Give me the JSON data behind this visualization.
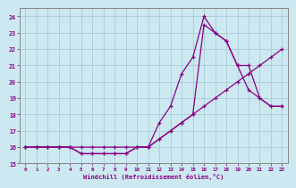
{
  "xlabel": "Windchill (Refroidissement éolien,°C)",
  "background_color": "#cce8f0",
  "grid_color": "#aaccd8",
  "line_color": "#880088",
  "xlim": [
    -0.5,
    23.5
  ],
  "ylim": [
    15,
    24.5
  ],
  "yticks": [
    15,
    16,
    17,
    18,
    19,
    20,
    21,
    22,
    23,
    24
  ],
  "xticks": [
    0,
    1,
    2,
    3,
    4,
    5,
    6,
    7,
    8,
    9,
    10,
    11,
    12,
    13,
    14,
    15,
    16,
    17,
    18,
    19,
    20,
    21,
    22,
    23
  ],
  "series": [
    {
      "comment": "bottom line - stays low then rises slowly",
      "x": [
        0,
        1,
        2,
        3,
        4,
        5,
        6,
        7,
        8,
        9,
        10,
        11,
        12,
        13,
        14,
        15,
        16,
        17,
        18,
        19,
        20,
        21,
        22,
        23
      ],
      "y": [
        16,
        16,
        16,
        16,
        16,
        15.6,
        15.6,
        15.6,
        15.6,
        15.6,
        16,
        16,
        16.5,
        17,
        17.5,
        18,
        18.5,
        19,
        19.5,
        20,
        20.5,
        21,
        21.5,
        22
      ]
    },
    {
      "comment": "middle line - peaks around x=16-17",
      "x": [
        0,
        1,
        2,
        3,
        4,
        5,
        6,
        7,
        8,
        9,
        10,
        11,
        12,
        13,
        14,
        15,
        16,
        17,
        18,
        19,
        20,
        21,
        22,
        23
      ],
      "y": [
        16,
        16,
        16,
        16,
        16,
        15.6,
        15.6,
        15.6,
        15.6,
        15.6,
        16,
        16,
        16.5,
        17,
        17.5,
        18,
        23.5,
        23,
        22.5,
        21,
        21,
        19,
        18.5,
        18.5
      ]
    },
    {
      "comment": "top line - peaks at x=17 ~24",
      "x": [
        0,
        1,
        2,
        3,
        4,
        5,
        6,
        7,
        8,
        9,
        10,
        11,
        12,
        13,
        14,
        15,
        16,
        17,
        18,
        19,
        20,
        21,
        22,
        23
      ],
      "y": [
        16,
        16,
        16,
        16,
        16,
        16,
        16,
        16,
        16,
        16,
        16,
        16,
        17.5,
        18.5,
        20.5,
        21.5,
        24,
        23,
        22.5,
        21,
        19.5,
        19,
        18.5,
        18.5
      ]
    }
  ]
}
